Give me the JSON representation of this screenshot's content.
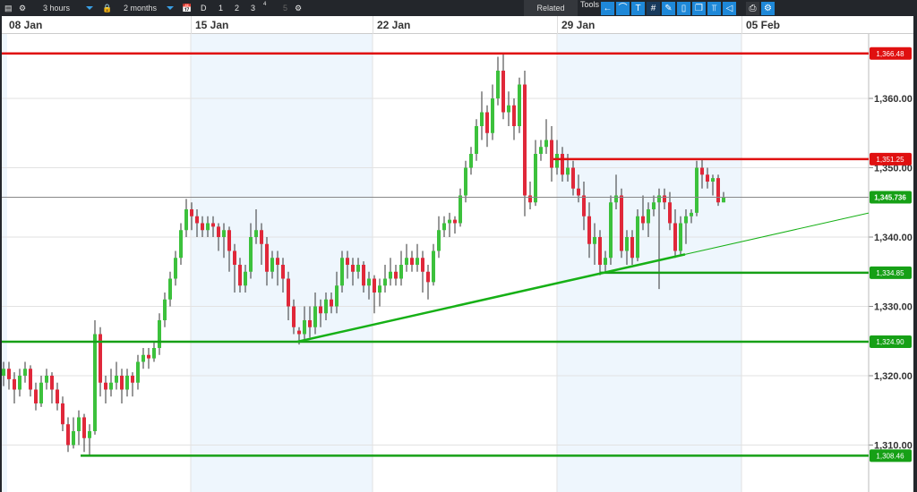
{
  "toolbar": {
    "interval": "3 hours",
    "range": "2 months",
    "periods": [
      "D",
      "1",
      "2",
      "3",
      "4",
      "5"
    ],
    "related": "Related",
    "tools": "Tools",
    "tool_icons": [
      "back-arrow-icon",
      "curve-icon",
      "text-icon",
      "grid-icon",
      "draw-icon",
      "candle-icon",
      "layers-icon",
      "fib-icon",
      "shape-icon",
      "print-icon",
      "settings-icon"
    ]
  },
  "time_axis": {
    "labels": [
      "08 Jan",
      "15 Jan",
      "22 Jan",
      "29 Jan",
      "05 Feb"
    ]
  },
  "price_axis": {
    "ticks": [
      1360,
      1350,
      1340,
      1330,
      1320,
      1310
    ],
    "tick_labels": [
      "1,360.00",
      "1,350.00",
      "1,340.00",
      "1,330.00",
      "1,320.00",
      "1,310.00"
    ]
  },
  "levels": [
    {
      "price": 1366.48,
      "label": "1,366.48",
      "color": "#e01010"
    },
    {
      "price": 1351.25,
      "label": "1,351.25",
      "color": "#e01010"
    },
    {
      "price": 1345.736,
      "label": "1,345.736",
      "color": "#16a016",
      "current": true
    },
    {
      "price": 1334.85,
      "label": "1,334.85",
      "color": "#16a016"
    },
    {
      "price": 1324.9,
      "label": "1,324.90",
      "color": "#16a016"
    },
    {
      "price": 1308.46,
      "label": "1,308.46",
      "color": "#16a016"
    }
  ],
  "colors": {
    "up": "#3cc13c",
    "down": "#e0283a",
    "support": "#16b016",
    "resistance": "#e01010"
  },
  "chart_data": {
    "type": "candlestick",
    "interval": "3 hours",
    "ylim": [
      1305,
      1370
    ],
    "trendline": {
      "from": 1324.9,
      "to": 1337.5
    },
    "ohlc": [
      [
        1320,
        1322,
        1318.5,
        1321
      ],
      [
        1321,
        1322,
        1318,
        1319.5
      ],
      [
        1319.5,
        1320.5,
        1316,
        1318
      ],
      [
        1318,
        1321,
        1317,
        1320
      ],
      [
        1320,
        1322,
        1319,
        1321
      ],
      [
        1321,
        1321.5,
        1317,
        1318
      ],
      [
        1318,
        1319,
        1315,
        1316
      ],
      [
        1316,
        1320,
        1315.5,
        1319
      ],
      [
        1319,
        1321,
        1318,
        1320
      ],
      [
        1320,
        1320.5,
        1316,
        1318
      ],
      [
        1318,
        1319,
        1315,
        1316
      ],
      [
        1316,
        1317,
        1312,
        1313
      ],
      [
        1313,
        1314,
        1309,
        1310
      ],
      [
        1310,
        1314,
        1309.5,
        1312
      ],
      [
        1312,
        1315,
        1310,
        1314
      ],
      [
        1314,
        1314.5,
        1309,
        1311
      ],
      [
        1311,
        1313,
        1308.5,
        1312
      ],
      [
        1312,
        1328,
        1311.5,
        1326
      ],
      [
        1326,
        1327,
        1317,
        1319
      ],
      [
        1319,
        1320,
        1316,
        1318
      ],
      [
        1318,
        1321,
        1317,
        1319
      ],
      [
        1319,
        1322,
        1318,
        1320
      ],
      [
        1320,
        1321,
        1316,
        1318
      ],
      [
        1318,
        1321,
        1317,
        1320
      ],
      [
        1320,
        1320.5,
        1317,
        1319
      ],
      [
        1319,
        1323,
        1318,
        1322
      ],
      [
        1322,
        1324,
        1321,
        1323
      ],
      [
        1323,
        1324,
        1321,
        1322.5
      ],
      [
        1322.5,
        1325,
        1322,
        1324
      ],
      [
        1324,
        1329,
        1323,
        1328
      ],
      [
        1328,
        1332,
        1327,
        1331
      ],
      [
        1331,
        1335,
        1330,
        1334
      ],
      [
        1334,
        1338,
        1333,
        1337
      ],
      [
        1337,
        1342,
        1336,
        1341
      ],
      [
        1341,
        1345.5,
        1340,
        1344
      ],
      [
        1344,
        1345,
        1341,
        1343
      ],
      [
        1343,
        1344,
        1340,
        1342
      ],
      [
        1342,
        1343,
        1340,
        1341
      ],
      [
        1341,
        1343,
        1340,
        1342
      ],
      [
        1342,
        1343,
        1340,
        1341.5
      ],
      [
        1341.5,
        1342,
        1338,
        1340
      ],
      [
        1340,
        1342,
        1337,
        1341
      ],
      [
        1341,
        1341.5,
        1335,
        1338
      ],
      [
        1338,
        1339,
        1332,
        1336
      ],
      [
        1336,
        1337,
        1332,
        1333
      ],
      [
        1333,
        1336,
        1332,
        1335
      ],
      [
        1335,
        1342,
        1334,
        1340
      ],
      [
        1340,
        1344,
        1339,
        1341
      ],
      [
        1341,
        1342,
        1336,
        1339
      ],
      [
        1339,
        1340,
        1333,
        1335
      ],
      [
        1335,
        1338,
        1334,
        1337
      ],
      [
        1337,
        1338,
        1333,
        1336
      ],
      [
        1336,
        1337,
        1332,
        1334
      ],
      [
        1334,
        1335,
        1328,
        1330
      ],
      [
        1330,
        1331,
        1326,
        1327
      ],
      [
        1326.5,
        1327,
        1324.5,
        1326
      ],
      [
        1326,
        1330,
        1325,
        1328
      ],
      [
        1328,
        1330,
        1325.5,
        1327
      ],
      [
        1327,
        1332,
        1326,
        1330
      ],
      [
        1330,
        1331,
        1327,
        1329
      ],
      [
        1329,
        1332,
        1328,
        1331
      ],
      [
        1331,
        1332,
        1329,
        1330
      ],
      [
        1330,
        1335,
        1329,
        1333
      ],
      [
        1333,
        1338,
        1332,
        1337
      ],
      [
        1337,
        1338,
        1334,
        1336
      ],
      [
        1336,
        1337,
        1333,
        1335
      ],
      [
        1335,
        1337,
        1334,
        1336
      ],
      [
        1336,
        1336.5,
        1332,
        1333
      ],
      [
        1333,
        1335,
        1331,
        1334
      ],
      [
        1334,
        1334.5,
        1329,
        1332
      ],
      [
        1332,
        1334,
        1330,
        1333
      ],
      [
        1333,
        1336,
        1332,
        1334
      ],
      [
        1334,
        1337,
        1333,
        1335
      ],
      [
        1335,
        1336,
        1333,
        1334
      ],
      [
        1334,
        1338,
        1333,
        1336
      ],
      [
        1336,
        1339,
        1335,
        1337
      ],
      [
        1337,
        1338,
        1335,
        1336
      ],
      [
        1336,
        1339,
        1335,
        1337
      ],
      [
        1337,
        1338,
        1332,
        1335
      ],
      [
        1335,
        1336,
        1331,
        1333.5
      ],
      [
        1333.5,
        1339,
        1333,
        1338
      ],
      [
        1338,
        1343,
        1337,
        1341
      ],
      [
        1341,
        1343,
        1340,
        1342
      ],
      [
        1342,
        1343.5,
        1340,
        1342.5
      ],
      [
        1342.5,
        1343,
        1340.5,
        1342
      ],
      [
        1342,
        1347,
        1341.5,
        1346
      ],
      [
        1346,
        1351,
        1345,
        1350
      ],
      [
        1350,
        1353,
        1349,
        1352
      ],
      [
        1352,
        1357,
        1351,
        1356
      ],
      [
        1356,
        1361,
        1354,
        1358
      ],
      [
        1358,
        1359,
        1353,
        1355
      ],
      [
        1355,
        1362,
        1354,
        1360
      ],
      [
        1360,
        1366,
        1359,
        1364
      ],
      [
        1364,
        1366.5,
        1357,
        1358
      ],
      [
        1358,
        1361,
        1356,
        1359
      ],
      [
        1359,
        1360,
        1354,
        1356
      ],
      [
        1356,
        1363,
        1355,
        1362
      ],
      [
        1362,
        1364,
        1343,
        1346
      ],
      [
        1346,
        1348,
        1344,
        1345
      ],
      [
        1345,
        1354,
        1344.5,
        1352
      ],
      [
        1352,
        1354,
        1351,
        1353
      ],
      [
        1353,
        1357,
        1352,
        1354
      ],
      [
        1354,
        1356,
        1348,
        1350
      ],
      [
        1350,
        1354,
        1349,
        1352
      ],
      [
        1352,
        1353,
        1348,
        1349
      ],
      [
        1349,
        1352,
        1348,
        1350
      ],
      [
        1350,
        1351,
        1346,
        1347
      ],
      [
        1347,
        1349,
        1345,
        1346
      ],
      [
        1346,
        1348,
        1341,
        1343
      ],
      [
        1343,
        1345,
        1337,
        1339
      ],
      [
        1339,
        1342,
        1336,
        1340
      ],
      [
        1340,
        1341,
        1334.5,
        1336
      ],
      [
        1336,
        1338,
        1334.8,
        1337
      ],
      [
        1337,
        1346,
        1336,
        1345
      ],
      [
        1345,
        1349,
        1344,
        1346
      ],
      [
        1346,
        1347,
        1337,
        1338
      ],
      [
        1338,
        1341,
        1336,
        1340
      ],
      [
        1340,
        1341,
        1336,
        1337
      ],
      [
        1337,
        1344,
        1336.5,
        1343
      ],
      [
        1343,
        1346,
        1341,
        1342
      ],
      [
        1342,
        1345,
        1340,
        1344
      ],
      [
        1344,
        1346,
        1343,
        1345
      ],
      [
        1345,
        1347,
        1332.5,
        1346
      ],
      [
        1346,
        1347,
        1344,
        1345
      ],
      [
        1345,
        1346.5,
        1341,
        1342
      ],
      [
        1342,
        1344,
        1337,
        1338
      ],
      [
        1338,
        1343,
        1337.5,
        1342
      ],
      [
        1342,
        1344,
        1339,
        1343
      ],
      [
        1343,
        1344,
        1342,
        1343.5
      ],
      [
        1343.5,
        1351,
        1343,
        1350
      ],
      [
        1350,
        1351.3,
        1347,
        1349
      ],
      [
        1349,
        1350,
        1347,
        1348
      ],
      [
        1348,
        1349,
        1346,
        1348.5
      ],
      [
        1348.5,
        1349,
        1344.5,
        1345
      ],
      [
        1345,
        1346.5,
        1345,
        1345.7
      ]
    ]
  }
}
